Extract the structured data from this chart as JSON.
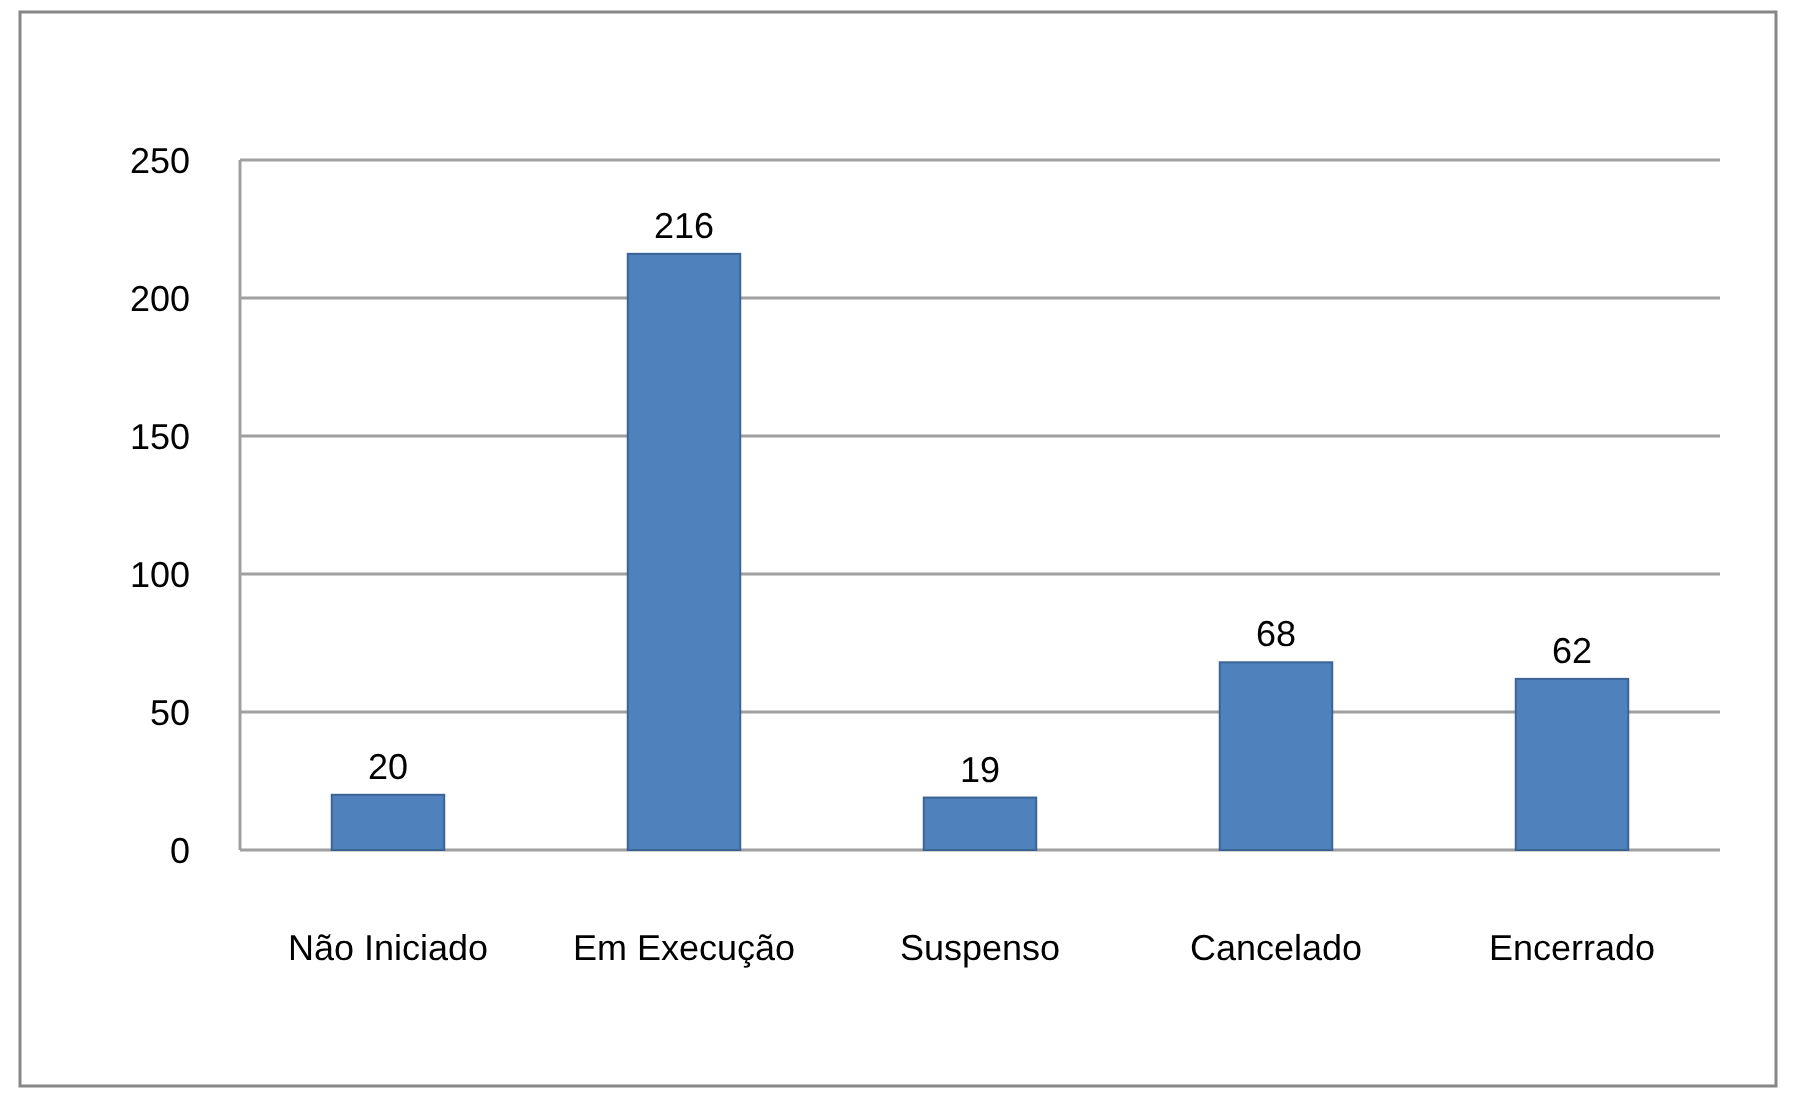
{
  "chart_data": {
    "type": "bar",
    "categories": [
      "Não Iniciado",
      "Em Execução",
      "Suspenso",
      "Cancelado",
      "Encerrado"
    ],
    "values": [
      20,
      216,
      19,
      68,
      62
    ],
    "color": "#4f81bd",
    "ylim": [
      0,
      250
    ],
    "yticks": [
      0,
      50,
      100,
      150,
      200,
      250
    ],
    "grid": "y",
    "data_labels": true
  }
}
